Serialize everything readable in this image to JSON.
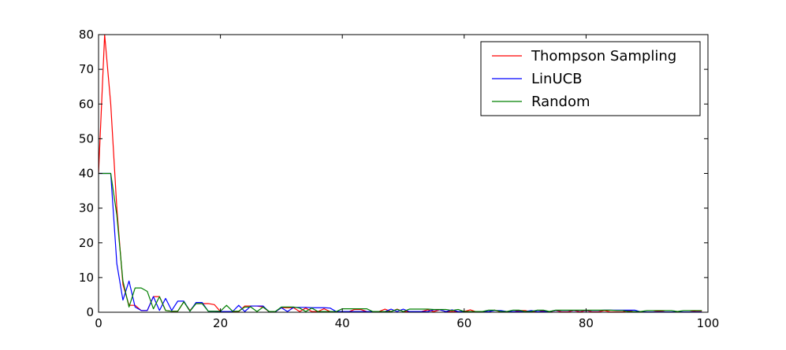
{
  "chart_data": {
    "type": "line",
    "title": "",
    "xlabel": "",
    "ylabel": "",
    "xlim": [
      0,
      100
    ],
    "ylim": [
      0,
      80
    ],
    "x_ticks": [
      0,
      20,
      40,
      60,
      80,
      100
    ],
    "y_ticks": [
      0,
      10,
      20,
      30,
      40,
      50,
      60,
      70,
      80
    ],
    "grid": false,
    "legend": "top-right",
    "series": [
      {
        "name": "Thompson Sampling",
        "color": "#ff0000",
        "x": [
          0,
          1,
          2,
          3,
          4,
          5,
          6,
          7,
          8,
          9,
          10,
          11,
          12,
          13,
          14,
          15,
          16,
          17,
          18,
          19,
          20,
          21,
          22,
          23,
          24,
          25,
          26,
          27,
          28,
          29,
          30,
          31,
          32,
          33,
          34,
          35,
          36,
          37,
          38,
          39,
          40,
          41,
          42,
          43,
          44,
          45,
          46,
          47,
          48,
          49,
          50,
          51,
          52,
          53,
          54,
          55,
          56,
          57,
          58,
          59,
          60,
          61,
          62,
          63,
          64,
          65,
          66,
          67,
          68,
          69,
          70,
          71,
          72,
          73,
          74,
          75,
          76,
          77,
          78,
          79,
          80,
          81,
          82,
          83,
          84,
          85,
          86,
          87,
          88,
          89,
          90,
          91,
          92,
          93,
          94,
          95,
          96,
          97,
          98,
          99
        ],
        "values": [
          40,
          80,
          60,
          30,
          8,
          2,
          2,
          0.5,
          0.5,
          4.5,
          4.5,
          0.5,
          0.3,
          0.3,
          3,
          0.5,
          2.5,
          2.5,
          2.5,
          2.2,
          0.2,
          0.2,
          0.2,
          0.2,
          1.8,
          1.8,
          1.8,
          1.5,
          0.1,
          0.1,
          1.3,
          1.3,
          1.3,
          0.2,
          1.2,
          0.2,
          0.2,
          1,
          0.2,
          0.2,
          0.2,
          0.1,
          0.8,
          0.8,
          0.2,
          0.2,
          0.2,
          0.9,
          0.2,
          0.9,
          0.2,
          0.2,
          0.2,
          0.2,
          0.7,
          0.2,
          0.7,
          0.2,
          0.2,
          0.2,
          0.2,
          0.7,
          0.1,
          0.1,
          0.1,
          0.6,
          0.1,
          0.1,
          0.1,
          0.5,
          0.5,
          0.1,
          0.1,
          0.5,
          0.1,
          0.5,
          0.1,
          0.1,
          0.5,
          0.1,
          0.5,
          0.1,
          0.1,
          0.5,
          0.1,
          0.1,
          0.1,
          0.5,
          0.1,
          0.1,
          0.1,
          0.1,
          0.4,
          0.1,
          0.1,
          0.1,
          0.1,
          0.1,
          0.4,
          0.4
        ]
      },
      {
        "name": "LinUCB",
        "color": "#0000ff",
        "x": [
          0,
          1,
          2,
          3,
          4,
          5,
          6,
          7,
          8,
          9,
          10,
          11,
          12,
          13,
          14,
          15,
          16,
          17,
          18,
          19,
          20,
          21,
          22,
          23,
          24,
          25,
          26,
          27,
          28,
          29,
          30,
          31,
          32,
          33,
          34,
          35,
          36,
          37,
          38,
          39,
          40,
          41,
          42,
          43,
          44,
          45,
          46,
          47,
          48,
          49,
          50,
          51,
          52,
          53,
          54,
          55,
          56,
          57,
          58,
          59,
          60,
          61,
          62,
          63,
          64,
          65,
          66,
          67,
          68,
          69,
          70,
          71,
          72,
          73,
          74,
          75,
          76,
          77,
          78,
          79,
          80,
          81,
          82,
          83,
          84,
          85,
          86,
          87,
          88,
          89,
          90,
          91,
          92,
          93,
          94,
          95,
          96,
          97,
          98,
          99
        ],
        "values": [
          40,
          40,
          40,
          14,
          3.5,
          9,
          1.5,
          0.5,
          0.5,
          4.5,
          0.5,
          4,
          0.5,
          3.2,
          3.2,
          0.3,
          2.8,
          2.8,
          0.3,
          0.3,
          0.2,
          0.2,
          0.2,
          2,
          0.2,
          1.8,
          1.8,
          1.8,
          0.1,
          0.1,
          1.3,
          0.2,
          1.4,
          1.4,
          1.4,
          1.3,
          1.3,
          1.3,
          1.2,
          0.2,
          0.2,
          0.2,
          0.2,
          0.2,
          0.2,
          0.2,
          0.2,
          0.2,
          0.9,
          0.2,
          0.9,
          0.2,
          0.2,
          0.2,
          0.2,
          0.7,
          0.7,
          0.2,
          0.7,
          0.2,
          0.2,
          0.2,
          0.2,
          0.2,
          0.2,
          0.5,
          0.5,
          0.2,
          0.2,
          0.2,
          0.2,
          0.5,
          0.2,
          0.2,
          0.2,
          0.5,
          0.5,
          0.5,
          0.5,
          0.5,
          0.5,
          0.5,
          0.5,
          0.6,
          0.6,
          0.6,
          0.6,
          0.6,
          0.6,
          0.1,
          0.1,
          0.1,
          0.1,
          0.1,
          0.1,
          0.1,
          0.1,
          0.1,
          0.1,
          0.1
        ]
      },
      {
        "name": "Random",
        "color": "#008000",
        "x": [
          0,
          1,
          2,
          3,
          4,
          5,
          6,
          7,
          8,
          9,
          10,
          11,
          12,
          13,
          14,
          15,
          16,
          17,
          18,
          19,
          20,
          21,
          22,
          23,
          24,
          25,
          26,
          27,
          28,
          29,
          30,
          31,
          32,
          33,
          34,
          35,
          36,
          37,
          38,
          39,
          40,
          41,
          42,
          43,
          44,
          45,
          46,
          47,
          48,
          49,
          50,
          51,
          52,
          53,
          54,
          55,
          56,
          57,
          58,
          59,
          60,
          61,
          62,
          63,
          64,
          65,
          66,
          67,
          68,
          69,
          70,
          71,
          72,
          73,
          74,
          75,
          76,
          77,
          78,
          79,
          80,
          81,
          82,
          83,
          84,
          85,
          86,
          87,
          88,
          89,
          90,
          91,
          92,
          93,
          94,
          95,
          96,
          97,
          98,
          99
        ],
        "values": [
          40,
          40,
          40,
          28,
          9,
          1.5,
          7,
          7,
          6,
          1,
          4.5,
          0.5,
          0.3,
          0.3,
          3,
          0.3,
          2.5,
          2.5,
          0.3,
          0.3,
          0.3,
          2,
          0.3,
          0.3,
          1.5,
          1.5,
          0.2,
          1.5,
          0.2,
          0.2,
          1.5,
          1.5,
          1.5,
          1.2,
          0.2,
          1.2,
          0.2,
          0.2,
          0.2,
          0.2,
          1,
          1,
          1,
          1,
          1,
          0.2,
          0.2,
          0.2,
          0.2,
          0.8,
          0.2,
          0.9,
          0.9,
          0.9,
          0.9,
          0.8,
          0.8,
          0.8,
          0.5,
          0.8,
          0.2,
          0.2,
          0.2,
          0.2,
          0.6,
          0.6,
          0.2,
          0.2,
          0.6,
          0.6,
          0.2,
          0.2,
          0.6,
          0.6,
          0.2,
          0.6,
          0.6,
          0.6,
          0.6,
          0.6,
          0.6,
          0.6,
          0.6,
          0.6,
          0.6,
          0.5,
          0.5,
          0.2,
          0.2,
          0.2,
          0.5,
          0.5,
          0.5,
          0.5,
          0.5,
          0.2,
          0.5,
          0.5,
          0.5,
          0.5
        ]
      }
    ]
  }
}
